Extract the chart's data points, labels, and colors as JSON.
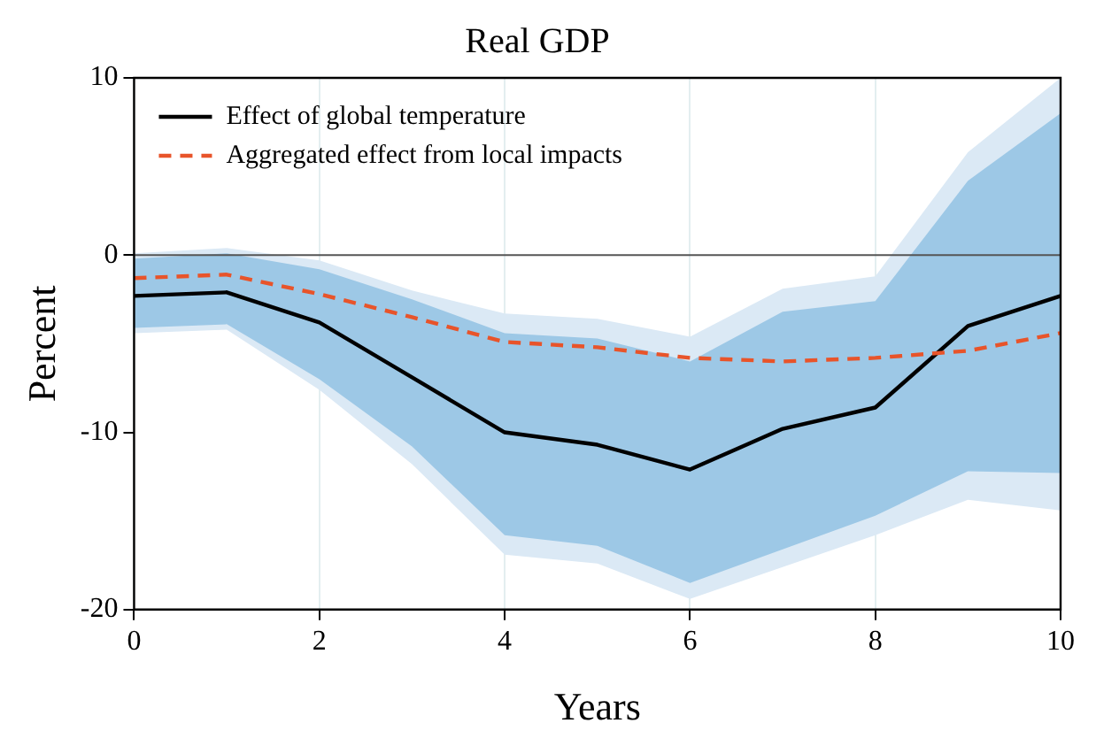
{
  "chart_data": {
    "type": "line",
    "title": "Real GDP",
    "xlabel": "Years",
    "ylabel": "Percent",
    "x": [
      0,
      1,
      2,
      3,
      4,
      5,
      6,
      7,
      8,
      9,
      10
    ],
    "series": [
      {
        "type": "area",
        "color": "#dbe9f5",
        "values": [
          null,
          null,
          null,
          null,
          null,
          null,
          null,
          null,
          null,
          null,
          null
        ],
        "lower": [
          -4.4,
          -4.2,
          -7.6,
          -11.8,
          -16.9,
          -17.4,
          -19.4,
          -17.6,
          -15.8,
          -13.8,
          -14.4
        ],
        "upper": [
          0.1,
          0.4,
          -0.3,
          -2.0,
          -3.3,
          -3.6,
          -4.6,
          -1.9,
          -1.2,
          5.8,
          10.0
        ]
      },
      {
        "type": "area",
        "color": "#9dc8e6",
        "values": [
          null,
          null,
          null,
          null,
          null,
          null,
          null,
          null,
          null,
          null,
          null
        ],
        "lower": [
          -4.1,
          -3.9,
          -7.0,
          -10.8,
          -15.8,
          -16.4,
          -18.5,
          -16.6,
          -14.7,
          -12.2,
          -12.3
        ],
        "upper": [
          -0.2,
          0.1,
          -0.8,
          -2.5,
          -4.4,
          -4.7,
          -6.0,
          -3.2,
          -2.6,
          4.2,
          8.0
        ]
      },
      {
        "name": "Effect of global temperature",
        "color": "#000000",
        "line_style": "solid",
        "values": [
          -2.3,
          -2.1,
          -3.8,
          -6.9,
          -10.0,
          -10.7,
          -12.1,
          -9.8,
          -8.6,
          -4.0,
          -2.3
        ]
      },
      {
        "name": "Aggregated effect from local impacts",
        "color": "#e8542a",
        "line_style": "dashed",
        "values": [
          -1.3,
          -1.1,
          -2.2,
          -3.5,
          -4.9,
          -5.2,
          -5.8,
          -6.0,
          -5.8,
          -5.4,
          -4.4
        ]
      }
    ],
    "xlim": [
      0,
      10
    ],
    "xticks": [
      0,
      2,
      4,
      6,
      8,
      10
    ],
    "ylim": [
      -20,
      10
    ],
    "yticks": [
      -20,
      -10,
      0,
      10
    ],
    "ref_lines": [
      {
        "axis": "y",
        "value": 0,
        "color": "#555555"
      }
    ],
    "grid": "x",
    "legend": "top left",
    "marker": "none"
  }
}
